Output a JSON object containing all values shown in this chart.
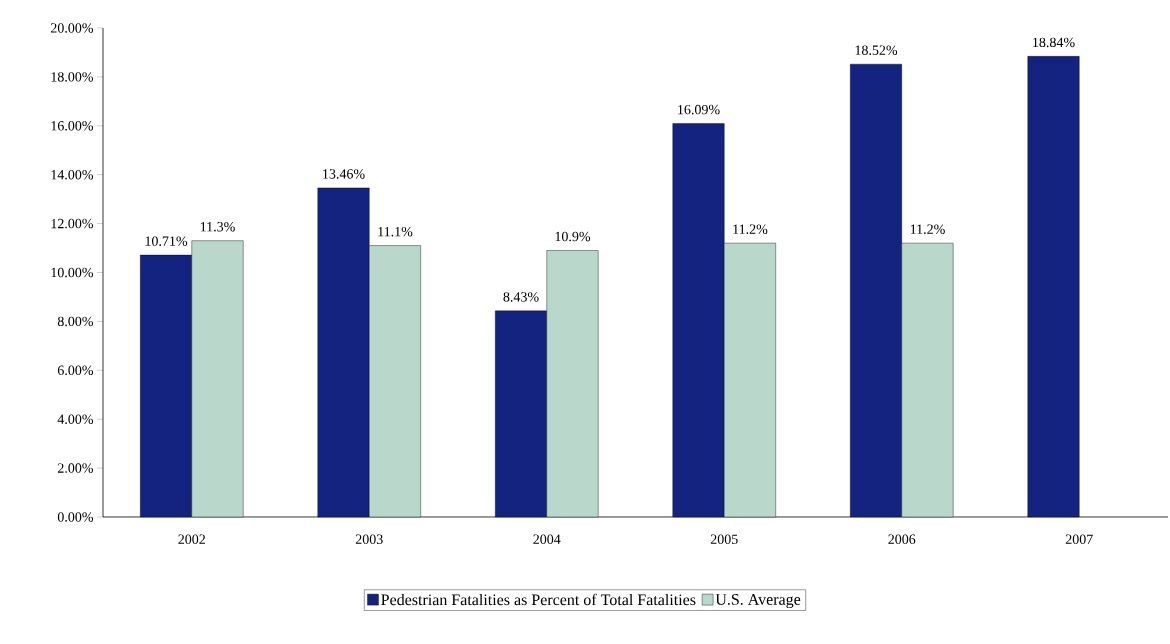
{
  "chart_data": {
    "type": "bar",
    "categories": [
      "2002",
      "2003",
      "2004",
      "2005",
      "2006",
      "2007"
    ],
    "series": [
      {
        "name": "Pedestrian Fatalities as Percent of Total Fatalities",
        "color": "#13237f",
        "values": [
          10.71,
          13.46,
          8.43,
          16.09,
          18.52,
          18.84
        ],
        "value_labels": [
          "10.71%",
          "13.46%",
          "8.43%",
          "16.09%",
          "18.52%",
          "18.84%"
        ]
      },
      {
        "name": "U.S. Average",
        "color": "#b9d7cb",
        "values": [
          11.3,
          11.1,
          10.9,
          11.2,
          11.2,
          null
        ],
        "value_labels": [
          "11.3%",
          "11.1%",
          "10.9%",
          "11.2%",
          "11.2%",
          null
        ]
      }
    ],
    "ylim": [
      0,
      20
    ],
    "yticks": [
      {
        "value": 0,
        "label": "0.00%"
      },
      {
        "value": 2,
        "label": "2.00%"
      },
      {
        "value": 4,
        "label": "4.00%"
      },
      {
        "value": 6,
        "label": "6.00%"
      },
      {
        "value": 8,
        "label": "8.00%"
      },
      {
        "value": 10,
        "label": "10.00%"
      },
      {
        "value": 12,
        "label": "12.00%"
      },
      {
        "value": 14,
        "label": "14.00%"
      },
      {
        "value": 16,
        "label": "16.00%"
      },
      {
        "value": 18,
        "label": "18.00%"
      },
      {
        "value": 20,
        "label": "20.00%"
      }
    ],
    "legend": "bottom",
    "grid": false
  }
}
